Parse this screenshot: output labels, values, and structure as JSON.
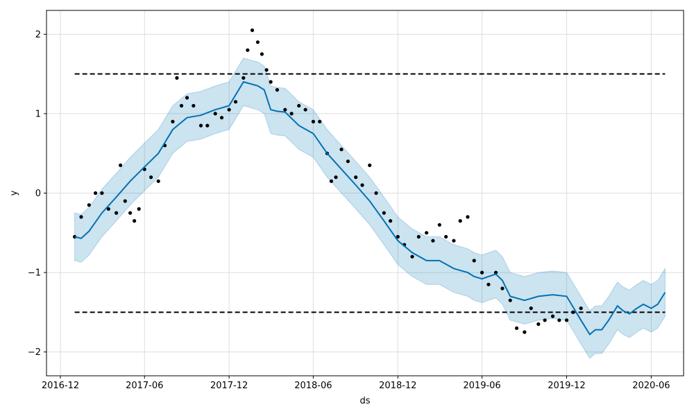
{
  "chart_data": {
    "type": "line",
    "title": "",
    "xlabel": "ds",
    "ylabel": "y",
    "grid": true,
    "xlim": [
      "2016-11-01",
      "2020-08-10"
    ],
    "ylim": [
      -2.3,
      2.3
    ],
    "x_ticks": [
      {
        "date": "2016-12-01",
        "label": "2016-12"
      },
      {
        "date": "2017-06-01",
        "label": "2017-06"
      },
      {
        "date": "2017-12-01",
        "label": "2017-12"
      },
      {
        "date": "2018-06-01",
        "label": "2018-06"
      },
      {
        "date": "2018-12-01",
        "label": "2018-12"
      },
      {
        "date": "2019-06-01",
        "label": "2019-06"
      },
      {
        "date": "2019-12-01",
        "label": "2019-12"
      },
      {
        "date": "2020-06-01",
        "label": "2020-06"
      }
    ],
    "y_ticks": [
      {
        "value": -2,
        "label": "−2"
      },
      {
        "value": -1,
        "label": "−1"
      },
      {
        "value": 0,
        "label": "0"
      },
      {
        "value": 1,
        "label": "1"
      },
      {
        "value": 2,
        "label": "2"
      }
    ],
    "colors": {
      "forecast": "#0072B2",
      "interval": "#0072B2",
      "observed": "#000000",
      "cap_floor": "#000000",
      "grid": "#dddddd"
    },
    "reference_lines": [
      {
        "kind": "cap",
        "y": 1.5,
        "x_start": "2017-01-01",
        "x_end": "2020-07-01"
      },
      {
        "kind": "floor",
        "y": -1.5,
        "x_start": "2017-01-01",
        "x_end": "2020-07-01"
      }
    ],
    "forecast": {
      "x": [
        "2017-01-01",
        "2017-01-15",
        "2017-02-01",
        "2017-03-01",
        "2017-04-01",
        "2017-05-01",
        "2017-06-01",
        "2017-07-01",
        "2017-08-01",
        "2017-09-01",
        "2017-10-01",
        "2017-11-01",
        "2017-12-01",
        "2018-01-01",
        "2018-02-01",
        "2018-02-15",
        "2018-03-01",
        "2018-03-15",
        "2018-04-01",
        "2018-05-01",
        "2018-06-01",
        "2018-07-01",
        "2018-08-01",
        "2018-09-01",
        "2018-10-01",
        "2018-11-01",
        "2018-12-01",
        "2019-01-01",
        "2019-02-01",
        "2019-03-01",
        "2019-04-01",
        "2019-05-01",
        "2019-05-15",
        "2019-06-01",
        "2019-06-15",
        "2019-07-01",
        "2019-07-15",
        "2019-08-01",
        "2019-09-01",
        "2019-10-01",
        "2019-11-01",
        "2019-12-01",
        "2020-01-01",
        "2020-01-20",
        "2020-02-01",
        "2020-02-15",
        "2020-03-01",
        "2020-03-20",
        "2020-04-01",
        "2020-04-15",
        "2020-05-01",
        "2020-05-15",
        "2020-06-01",
        "2020-06-15",
        "2020-07-01"
      ],
      "yhat": [
        -0.55,
        -0.57,
        -0.48,
        -0.25,
        -0.05,
        0.15,
        0.33,
        0.5,
        0.8,
        0.95,
        0.98,
        1.05,
        1.1,
        1.4,
        1.35,
        1.3,
        1.05,
        1.03,
        1.02,
        0.85,
        0.75,
        0.5,
        0.3,
        0.1,
        -0.1,
        -0.35,
        -0.6,
        -0.75,
        -0.85,
        -0.85,
        -0.95,
        -1.0,
        -1.05,
        -1.08,
        -1.05,
        -1.02,
        -1.1,
        -1.3,
        -1.35,
        -1.3,
        -1.28,
        -1.3,
        -1.6,
        -1.78,
        -1.72,
        -1.72,
        -1.6,
        -1.42,
        -1.48,
        -1.52,
        -1.45,
        -1.4,
        -1.45,
        -1.4,
        -1.25
      ],
      "yhat_lower": [
        -0.85,
        -0.87,
        -0.78,
        -0.55,
        -0.35,
        -0.15,
        0.03,
        0.2,
        0.5,
        0.65,
        0.68,
        0.75,
        0.8,
        1.1,
        1.05,
        1.0,
        0.75,
        0.73,
        0.72,
        0.55,
        0.45,
        0.2,
        0.0,
        -0.2,
        -0.4,
        -0.65,
        -0.9,
        -1.05,
        -1.15,
        -1.15,
        -1.25,
        -1.3,
        -1.35,
        -1.38,
        -1.35,
        -1.32,
        -1.4,
        -1.6,
        -1.65,
        -1.6,
        -1.58,
        -1.6,
        -1.9,
        -2.08,
        -2.02,
        -2.02,
        -1.9,
        -1.72,
        -1.78,
        -1.82,
        -1.75,
        -1.7,
        -1.75,
        -1.7,
        -1.55
      ],
      "yhat_upper": [
        -0.25,
        -0.27,
        -0.18,
        0.05,
        0.25,
        0.45,
        0.63,
        0.8,
        1.1,
        1.25,
        1.28,
        1.35,
        1.4,
        1.7,
        1.65,
        1.6,
        1.35,
        1.33,
        1.32,
        1.15,
        1.05,
        0.8,
        0.6,
        0.4,
        0.2,
        -0.05,
        -0.3,
        -0.45,
        -0.55,
        -0.55,
        -0.65,
        -0.7,
        -0.75,
        -0.78,
        -0.75,
        -0.72,
        -0.8,
        -1.0,
        -1.05,
        -1.0,
        -0.98,
        -1.0,
        -1.3,
        -1.48,
        -1.42,
        -1.42,
        -1.3,
        -1.12,
        -1.18,
        -1.22,
        -1.15,
        -1.1,
        -1.15,
        -1.1,
        -0.95
      ]
    },
    "observed": {
      "x": [
        "2017-01-01",
        "2017-01-15",
        "2017-02-01",
        "2017-02-15",
        "2017-03-01",
        "2017-03-15",
        "2017-04-01",
        "2017-04-10",
        "2017-04-20",
        "2017-05-01",
        "2017-05-10",
        "2017-05-20",
        "2017-06-01",
        "2017-06-15",
        "2017-07-01",
        "2017-07-15",
        "2017-08-01",
        "2017-08-10",
        "2017-08-20",
        "2017-09-01",
        "2017-09-15",
        "2017-10-01",
        "2017-10-15",
        "2017-11-01",
        "2017-11-15",
        "2017-12-01",
        "2017-12-15",
        "2018-01-01",
        "2018-01-10",
        "2018-01-20",
        "2018-02-01",
        "2018-02-10",
        "2018-02-20",
        "2018-03-01",
        "2018-03-15",
        "2018-04-01",
        "2018-04-15",
        "2018-05-01",
        "2018-05-15",
        "2018-06-01",
        "2018-06-15",
        "2018-07-01",
        "2018-07-10",
        "2018-07-20",
        "2018-08-01",
        "2018-08-15",
        "2018-09-01",
        "2018-09-15",
        "2018-10-01",
        "2018-10-15",
        "2018-11-01",
        "2018-11-15",
        "2018-12-01",
        "2018-12-15",
        "2019-01-01",
        "2019-01-15",
        "2019-02-01",
        "2019-02-15",
        "2019-03-01",
        "2019-03-15",
        "2019-04-01",
        "2019-04-15",
        "2019-05-01",
        "2019-05-15",
        "2019-06-01",
        "2019-06-15",
        "2019-07-01",
        "2019-07-15",
        "2019-08-01",
        "2019-08-15",
        "2019-09-01",
        "2019-09-15",
        "2019-10-01",
        "2019-10-15",
        "2019-11-01",
        "2019-11-15",
        "2019-12-01",
        "2019-12-15",
        "2020-01-01"
      ],
      "y": [
        -0.55,
        -0.3,
        -0.15,
        0.0,
        0.0,
        -0.2,
        -0.25,
        0.35,
        -0.1,
        -0.25,
        -0.35,
        -0.2,
        0.3,
        0.2,
        0.15,
        0.6,
        0.9,
        1.45,
        1.1,
        1.2,
        1.1,
        0.85,
        0.85,
        1.0,
        0.95,
        1.05,
        1.15,
        1.45,
        1.8,
        2.05,
        1.9,
        1.75,
        1.55,
        1.4,
        1.3,
        1.05,
        1.0,
        1.1,
        1.05,
        0.9,
        0.9,
        0.5,
        0.15,
        0.2,
        0.55,
        0.4,
        0.2,
        0.1,
        0.35,
        0.0,
        -0.25,
        -0.35,
        -0.55,
        -0.65,
        -0.8,
        -0.55,
        -0.5,
        -0.6,
        -0.4,
        -0.55,
        -0.6,
        -0.35,
        -0.3,
        -0.85,
        -1.0,
        -1.15,
        -1.0,
        -1.2,
        -1.35,
        -1.7,
        -1.75,
        -1.45,
        -1.65,
        -1.6,
        -1.55,
        -1.6,
        -1.6,
        -1.5,
        -1.45
      ]
    }
  }
}
